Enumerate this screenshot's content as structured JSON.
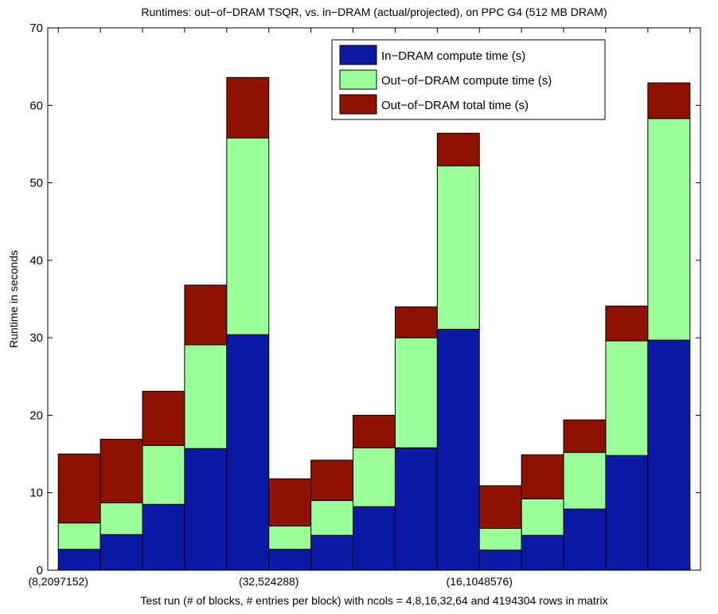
{
  "chart_data": {
    "type": "bar",
    "stacked": true,
    "title": "Runtimes: out−of−DRAM TSQR, vs. in−DRAM (actual/projected), on PPC G4 (512 MB DRAM)",
    "xlabel": "Test run (# of blocks, # entries per block) with ncols = 4,8,16,32,64 and 4194304 rows in matrix",
    "ylabel": "Runtime in seconds",
    "ylim": [
      0,
      70
    ],
    "yticks": [
      0,
      10,
      20,
      30,
      40,
      50,
      60,
      70
    ],
    "group_labels": [
      "(8,2097152)",
      "(32,524288)",
      "(16,1048576)"
    ],
    "bars_per_group": 5,
    "series": [
      {
        "name": "In−DRAM compute time (s)",
        "color": "#0a1aa6",
        "values": [
          2.7,
          4.6,
          8.5,
          15.7,
          30.4,
          2.7,
          4.5,
          8.2,
          15.8,
          31.1,
          2.6,
          4.5,
          7.9,
          14.8,
          29.7
        ]
      },
      {
        "name": "Out−of−DRAM compute time (s)",
        "color": "#99ff99",
        "values": [
          3.4,
          4.1,
          7.6,
          13.4,
          25.4,
          3.0,
          4.5,
          7.6,
          14.2,
          21.1,
          2.8,
          4.7,
          7.3,
          14.8,
          28.6
        ]
      },
      {
        "name": "Out−of−DRAM total time (s)",
        "color": "#8f1200",
        "values": [
          8.9,
          8.2,
          7.0,
          7.7,
          7.8,
          6.1,
          5.2,
          4.2,
          4.0,
          4.2,
          5.5,
          5.7,
          4.2,
          4.5,
          4.6
        ]
      }
    ],
    "legend_position": "top-center",
    "grid": false
  }
}
